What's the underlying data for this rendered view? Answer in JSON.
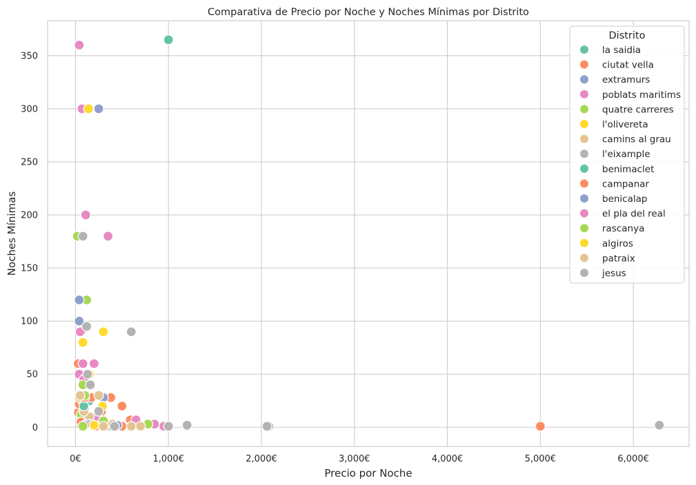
{
  "chart_data": {
    "type": "scatter",
    "title": "Comparativa de Precio por Noche y Noches Mínimas por Distrito",
    "xlabel": "Precio por Noche",
    "ylabel": "Noches Mínimas",
    "xlim": [
      -300,
      6600
    ],
    "ylim": [
      -18,
      383
    ],
    "xticks": [
      0,
      1000,
      2000,
      3000,
      4000,
      5000,
      6000
    ],
    "xtick_labels": [
      "0€",
      "1,000€",
      "2,000€",
      "3,000€",
      "4,000€",
      "5,000€",
      "6,000€"
    ],
    "yticks": [
      0,
      50,
      100,
      150,
      200,
      250,
      300,
      350
    ],
    "ytick_labels": [
      "0",
      "50",
      "100",
      "150",
      "200",
      "250",
      "300",
      "350"
    ],
    "grid": true,
    "legend": {
      "title": "Distrito",
      "placement": "top-right"
    },
    "series": [
      {
        "name": "la saidia",
        "color": "#66c2a5",
        "points": [
          [
            1000,
            365
          ],
          [
            90,
            30
          ],
          [
            120,
            5
          ],
          [
            200,
            2
          ],
          [
            60,
            15
          ],
          [
            350,
            1
          ],
          [
            150,
            25
          ],
          [
            80,
            2
          ]
        ]
      },
      {
        "name": "ciutat vella",
        "color": "#fc8d62",
        "points": [
          [
            70,
            91
          ],
          [
            30,
            60
          ],
          [
            80,
            30
          ],
          [
            170,
            28
          ],
          [
            380,
            28
          ],
          [
            500,
            20
          ],
          [
            30,
            14
          ],
          [
            590,
            7
          ],
          [
            220,
            1
          ],
          [
            320,
            1
          ],
          [
            500,
            1
          ],
          [
            1000,
            1
          ],
          [
            5000,
            1
          ],
          [
            60,
            2
          ],
          [
            40,
            22
          ],
          [
            280,
            15
          ]
        ]
      },
      {
        "name": "extramurs",
        "color": "#8da0cb",
        "points": [
          [
            250,
            300
          ],
          [
            40,
            100
          ],
          [
            300,
            28
          ],
          [
            80,
            3
          ],
          [
            120,
            3
          ],
          [
            450,
            2
          ],
          [
            150,
            5
          ],
          [
            60,
            10
          ]
        ]
      },
      {
        "name": "poblats maritims",
        "color": "#e78ac3",
        "points": [
          [
            40,
            360
          ],
          [
            70,
            300
          ],
          [
            110,
            200
          ],
          [
            350,
            180
          ],
          [
            50,
            90
          ],
          [
            40,
            50
          ],
          [
            90,
            45
          ],
          [
            200,
            60
          ],
          [
            80,
            25
          ],
          [
            100,
            18
          ],
          [
            650,
            7
          ],
          [
            850,
            3
          ],
          [
            1200,
            1
          ],
          [
            950,
            1
          ],
          [
            60,
            8
          ],
          [
            220,
            10
          ]
        ]
      },
      {
        "name": "quatre carreres",
        "color": "#a6d854",
        "points": [
          [
            20,
            180
          ],
          [
            120,
            120
          ],
          [
            40,
            30
          ],
          [
            80,
            40
          ],
          [
            300,
            6
          ],
          [
            780,
            3
          ],
          [
            120,
            2
          ],
          [
            60,
            12
          ]
        ]
      },
      {
        "name": "l'olivereta",
        "color": "#ffd92f",
        "points": [
          [
            140,
            300
          ],
          [
            300,
            90
          ],
          [
            80,
            80
          ],
          [
            290,
            20
          ],
          [
            150,
            2
          ],
          [
            60,
            5
          ]
        ]
      },
      {
        "name": "camins al grau",
        "color": "#e5c494",
        "points": [
          [
            40,
            28
          ],
          [
            250,
            30
          ],
          [
            600,
            1
          ],
          [
            700,
            1
          ],
          [
            150,
            10
          ],
          [
            400,
            3
          ],
          [
            90,
            15
          ]
        ]
      },
      {
        "name": "l'eixample",
        "color": "#b3b3b3",
        "points": [
          [
            80,
            180
          ],
          [
            600,
            90
          ],
          [
            120,
            95
          ],
          [
            160,
            40
          ],
          [
            1200,
            2
          ],
          [
            2080,
            1
          ],
          [
            6280,
            2
          ],
          [
            1000,
            1
          ],
          [
            250,
            15
          ],
          [
            420,
            1
          ]
        ]
      },
      {
        "name": "benimaclet",
        "color": "#66c2a5",
        "points": [
          [
            90,
            20
          ],
          [
            150,
            3
          ]
        ]
      },
      {
        "name": "campanar",
        "color": "#fc8d62",
        "points": [
          [
            100,
            28
          ],
          [
            60,
            5
          ]
        ]
      },
      {
        "name": "benicalap",
        "color": "#8da0cb",
        "points": [
          [
            40,
            120
          ],
          [
            120,
            3
          ]
        ]
      },
      {
        "name": "el pla del real",
        "color": "#e78ac3",
        "points": [
          [
            80,
            60
          ],
          [
            100,
            2
          ]
        ]
      },
      {
        "name": "rascanya",
        "color": "#a6d854",
        "points": [
          [
            100,
            30
          ],
          [
            80,
            1
          ]
        ]
      },
      {
        "name": "algiros",
        "color": "#ffd92f",
        "points": [
          [
            150,
            50
          ],
          [
            200,
            2
          ]
        ]
      },
      {
        "name": "patraix",
        "color": "#e5c494",
        "points": [
          [
            50,
            30
          ],
          [
            300,
            1
          ]
        ]
      },
      {
        "name": "jesus",
        "color": "#b3b3b3",
        "points": [
          [
            130,
            50
          ],
          [
            2060,
            1
          ]
        ]
      }
    ]
  }
}
